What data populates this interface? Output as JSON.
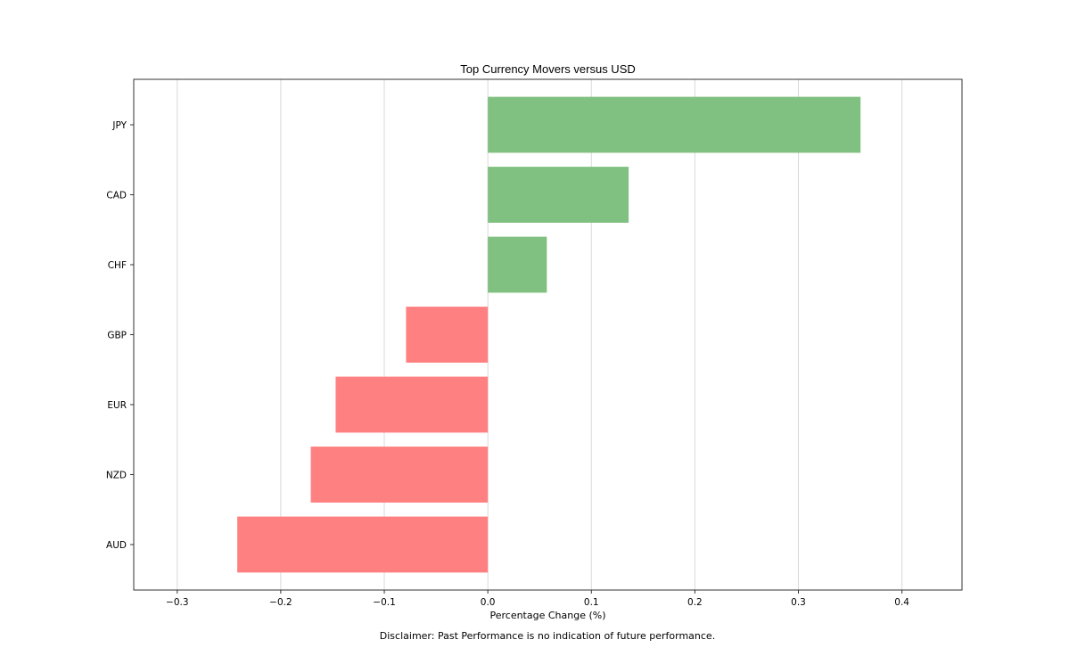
{
  "chart_data": {
    "type": "bar",
    "orientation": "horizontal",
    "title": "Top Currency Movers versus USD",
    "xlabel": "Percentage Change (%)",
    "ylabel": "",
    "categories": [
      "JPY",
      "CAD",
      "CHF",
      "GBP",
      "EUR",
      "NZD",
      "AUD"
    ],
    "values": [
      0.36,
      0.136,
      0.057,
      -0.079,
      -0.147,
      -0.171,
      -0.242
    ],
    "xlim": [
      -0.342,
      0.458
    ],
    "xticks": [
      -0.3,
      -0.2,
      -0.1,
      0.0,
      0.1,
      0.2,
      0.3,
      0.4
    ],
    "xtick_labels": [
      "−0.3",
      "−0.2",
      "−0.1",
      "0.0",
      "0.1",
      "0.2",
      "0.3",
      "0.4"
    ],
    "grid": "vertical",
    "legend": "none",
    "colors": {
      "positive": "#80c080",
      "negative": "#ff8080",
      "grid": "#d9d9d9",
      "frame": "#333333"
    }
  },
  "footnote": "Disclaimer: Past Performance is no indication of future performance."
}
